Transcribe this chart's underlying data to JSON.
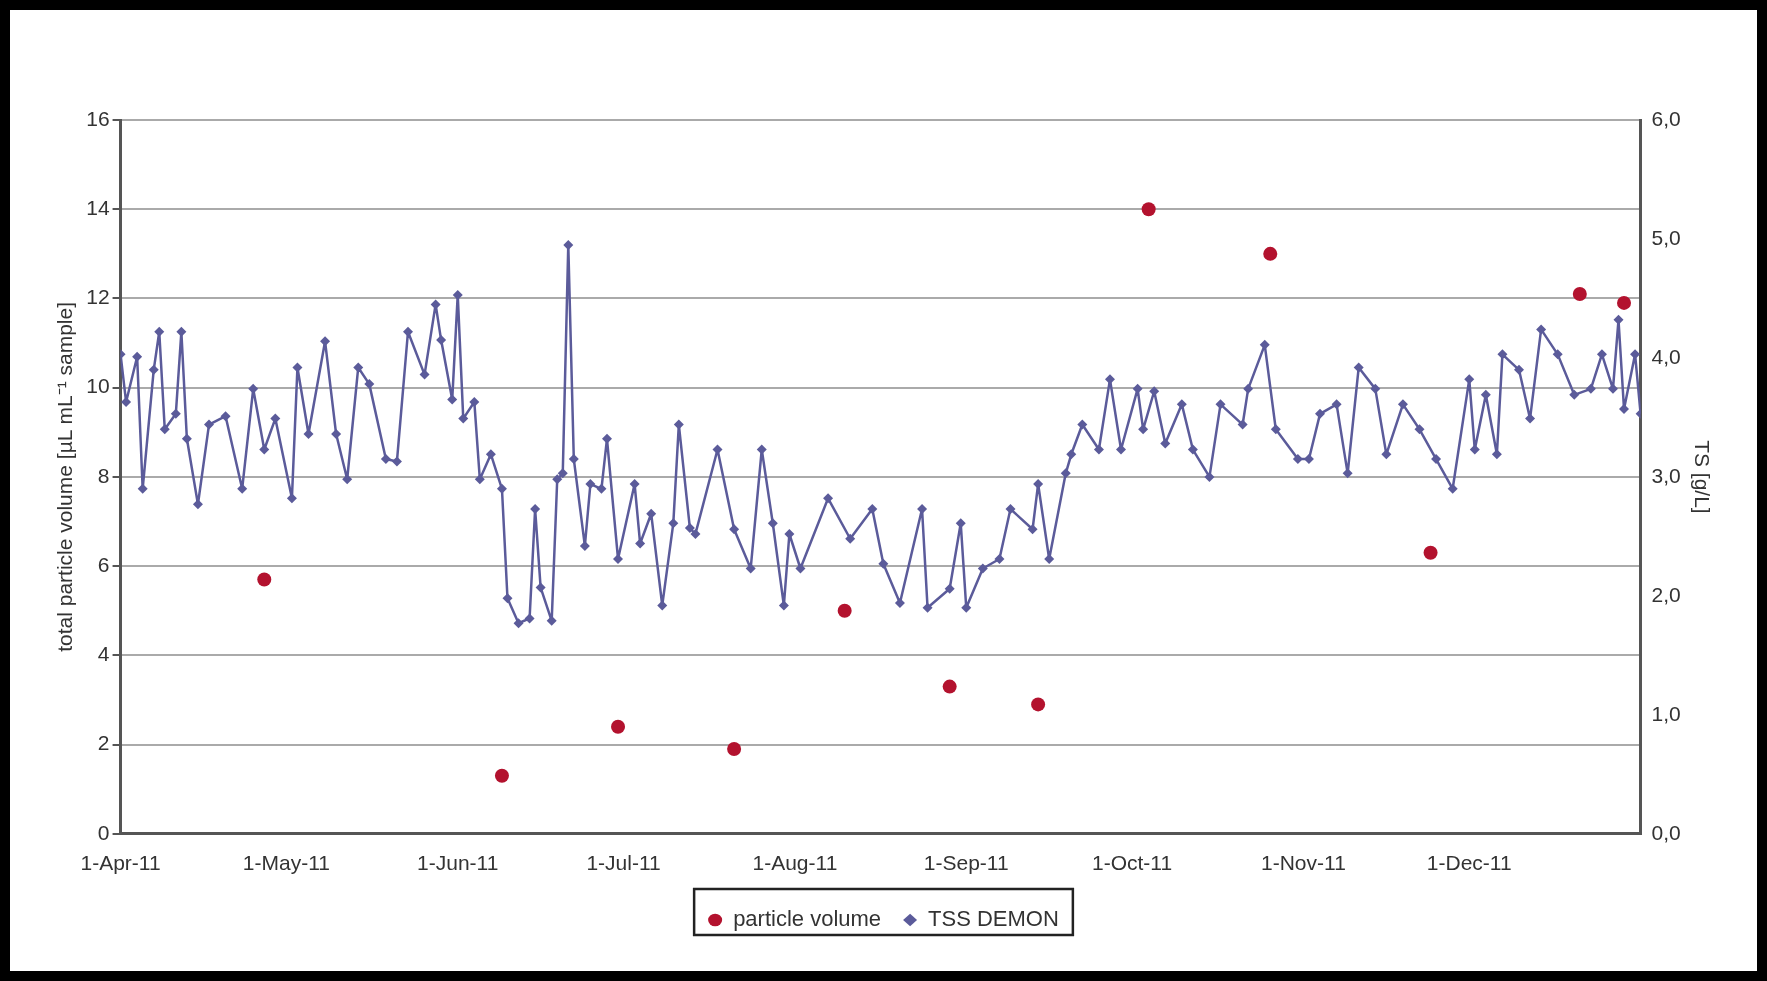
{
  "chart_data": {
    "type": "line",
    "ylabel": "total particle volume [µL mL⁻¹ sample]",
    "y2label": "TS [g/L]",
    "xlim": [
      "2011-04-01",
      "2012-01-01"
    ],
    "xticks": [
      {
        "value": "2011-04-01",
        "label": "1-Apr-11"
      },
      {
        "value": "2011-05-01",
        "label": "1-May-11"
      },
      {
        "value": "2011-06-01",
        "label": "1-Jun-11"
      },
      {
        "value": "2011-07-01",
        "label": "1-Jul-11"
      },
      {
        "value": "2011-08-01",
        "label": "1-Aug-11"
      },
      {
        "value": "2011-09-01",
        "label": "1-Sep-11"
      },
      {
        "value": "2011-10-01",
        "label": "1-Oct-11"
      },
      {
        "value": "2011-11-01",
        "label": "1-Nov-11"
      },
      {
        "value": "2011-12-01",
        "label": "1-Dec-11"
      }
    ],
    "ylim": [
      0,
      16
    ],
    "yticks": [
      0,
      2,
      4,
      6,
      8,
      10,
      12,
      14,
      16
    ],
    "y2lim": [
      0,
      6
    ],
    "y2ticks": [
      {
        "value": 0,
        "label": "0,0"
      },
      {
        "value": 1,
        "label": "1,0"
      },
      {
        "value": 2,
        "label": "2,0"
      },
      {
        "value": 3,
        "label": "3,0"
      },
      {
        "value": 4,
        "label": "4,0"
      },
      {
        "value": 5,
        "label": "5,0"
      },
      {
        "value": 6,
        "label": "6,0"
      }
    ],
    "grid": "y",
    "legend": "bottom",
    "series": [
      {
        "name": "particle volume",
        "type": "scatter",
        "marker": "circle",
        "color": "#b3122e",
        "x": [
          "2011-04-27",
          "2011-06-09",
          "2011-06-30",
          "2011-07-21",
          "2011-08-10",
          "2011-08-29",
          "2011-09-14",
          "2011-10-04",
          "2011-10-26",
          "2011-11-24",
          "2011-12-21",
          "2011-12-29"
        ],
        "values": [
          5.7,
          1.3,
          2.4,
          1.9,
          5.0,
          3.3,
          2.9,
          14.0,
          13.0,
          6.3,
          12.1,
          11.9
        ]
      },
      {
        "name": "TSS DEMON",
        "type": "line",
        "marker": "diamond",
        "line_style": "solid",
        "axis": "y2",
        "color": "#5b5b9a",
        "x": [
          "2011-04-01",
          "2011-04-02",
          "2011-04-04",
          "2011-04-05",
          "2011-04-07",
          "2011-04-08",
          "2011-04-09",
          "2011-04-11",
          "2011-04-12",
          "2011-04-13",
          "2011-04-15",
          "2011-04-17",
          "2011-04-20",
          "2011-04-23",
          "2011-04-25",
          "2011-04-27",
          "2011-04-29",
          "2011-05-02",
          "2011-05-03",
          "2011-05-05",
          "2011-05-08",
          "2011-05-10",
          "2011-05-12",
          "2011-05-14",
          "2011-05-16",
          "2011-05-19",
          "2011-05-21",
          "2011-05-23",
          "2011-05-26",
          "2011-05-28",
          "2011-05-29",
          "2011-05-31",
          "2011-06-01",
          "2011-06-02",
          "2011-06-04",
          "2011-06-05",
          "2011-06-07",
          "2011-06-09",
          "2011-06-10",
          "2011-06-12",
          "2011-06-14",
          "2011-06-15",
          "2011-06-16",
          "2011-06-18",
          "2011-06-19",
          "2011-06-20",
          "2011-06-21",
          "2011-06-22",
          "2011-06-24",
          "2011-06-25",
          "2011-06-27",
          "2011-06-28",
          "2011-06-30",
          "2011-07-03",
          "2011-07-04",
          "2011-07-06",
          "2011-07-08",
          "2011-07-10",
          "2011-07-11",
          "2011-07-13",
          "2011-07-14",
          "2011-07-18",
          "2011-07-21",
          "2011-07-24",
          "2011-07-26",
          "2011-07-28",
          "2011-07-30",
          "2011-07-31",
          "2011-08-02",
          "2011-08-07",
          "2011-08-11",
          "2011-08-15",
          "2011-08-17",
          "2011-08-20",
          "2011-08-24",
          "2011-08-25",
          "2011-08-29",
          "2011-08-31",
          "2011-09-01",
          "2011-09-04",
          "2011-09-07",
          "2011-09-09",
          "2011-09-13",
          "2011-09-14",
          "2011-09-16",
          "2011-09-19",
          "2011-09-20",
          "2011-09-22",
          "2011-09-25",
          "2011-09-27",
          "2011-09-29",
          "2011-10-02",
          "2011-10-03",
          "2011-10-05",
          "2011-10-07",
          "2011-10-10",
          "2011-10-12",
          "2011-10-15",
          "2011-10-17",
          "2011-10-21",
          "2011-10-22",
          "2011-10-25",
          "2011-10-27",
          "2011-10-31",
          "2011-11-02",
          "2011-11-04",
          "2011-11-07",
          "2011-11-09",
          "2011-11-11",
          "2011-11-14",
          "2011-11-16",
          "2011-11-19",
          "2011-11-22",
          "2011-11-25",
          "2011-11-28",
          "2011-12-01",
          "2011-12-02",
          "2011-12-04",
          "2011-12-06",
          "2011-12-07",
          "2011-12-10",
          "2011-12-12",
          "2011-12-14",
          "2011-12-17",
          "2011-12-20",
          "2011-12-23",
          "2011-12-25",
          "2011-12-27",
          "2011-12-28",
          "2011-12-29",
          "2011-12-31",
          "2012-01-01"
        ],
        "values": [
          4.03,
          3.63,
          4.01,
          2.9,
          3.9,
          4.22,
          3.4,
          3.53,
          4.22,
          3.32,
          2.77,
          3.44,
          3.51,
          2.9,
          3.74,
          3.23,
          3.49,
          2.82,
          3.92,
          3.36,
          4.14,
          3.36,
          2.98,
          3.92,
          3.78,
          3.15,
          3.13,
          4.22,
          3.86,
          4.45,
          4.15,
          3.65,
          4.53,
          3.49,
          3.63,
          2.98,
          3.19,
          2.9,
          1.98,
          1.77,
          1.81,
          2.73,
          2.07,
          1.79,
          2.98,
          3.03,
          4.95,
          3.15,
          2.42,
          2.94,
          2.9,
          3.32,
          2.31,
          2.94,
          2.44,
          2.69,
          1.92,
          2.61,
          3.44,
          2.57,
          2.52,
          3.23,
          2.56,
          2.23,
          3.23,
          2.61,
          1.92,
          2.52,
          2.23,
          2.82,
          2.48,
          2.73,
          2.27,
          1.94,
          2.73,
          1.9,
          2.06,
          2.61,
          1.9,
          2.23,
          2.31,
          2.73,
          2.56,
          2.94,
          2.31,
          3.03,
          3.19,
          3.44,
          3.23,
          3.82,
          3.23,
          3.74,
          3.4,
          3.72,
          3.28,
          3.61,
          3.23,
          3.0,
          3.61,
          3.44,
          3.74,
          4.11,
          3.4,
          3.15,
          3.15,
          3.53,
          3.61,
          3.03,
          3.92,
          3.74,
          3.19,
          3.61,
          3.4,
          3.15,
          2.9,
          3.82,
          3.23,
          3.69,
          3.19,
          4.03,
          3.9,
          3.49,
          4.24,
          4.03,
          3.69,
          3.74,
          4.03,
          3.74,
          4.32,
          3.57,
          4.03,
          3.53
        ]
      }
    ]
  }
}
